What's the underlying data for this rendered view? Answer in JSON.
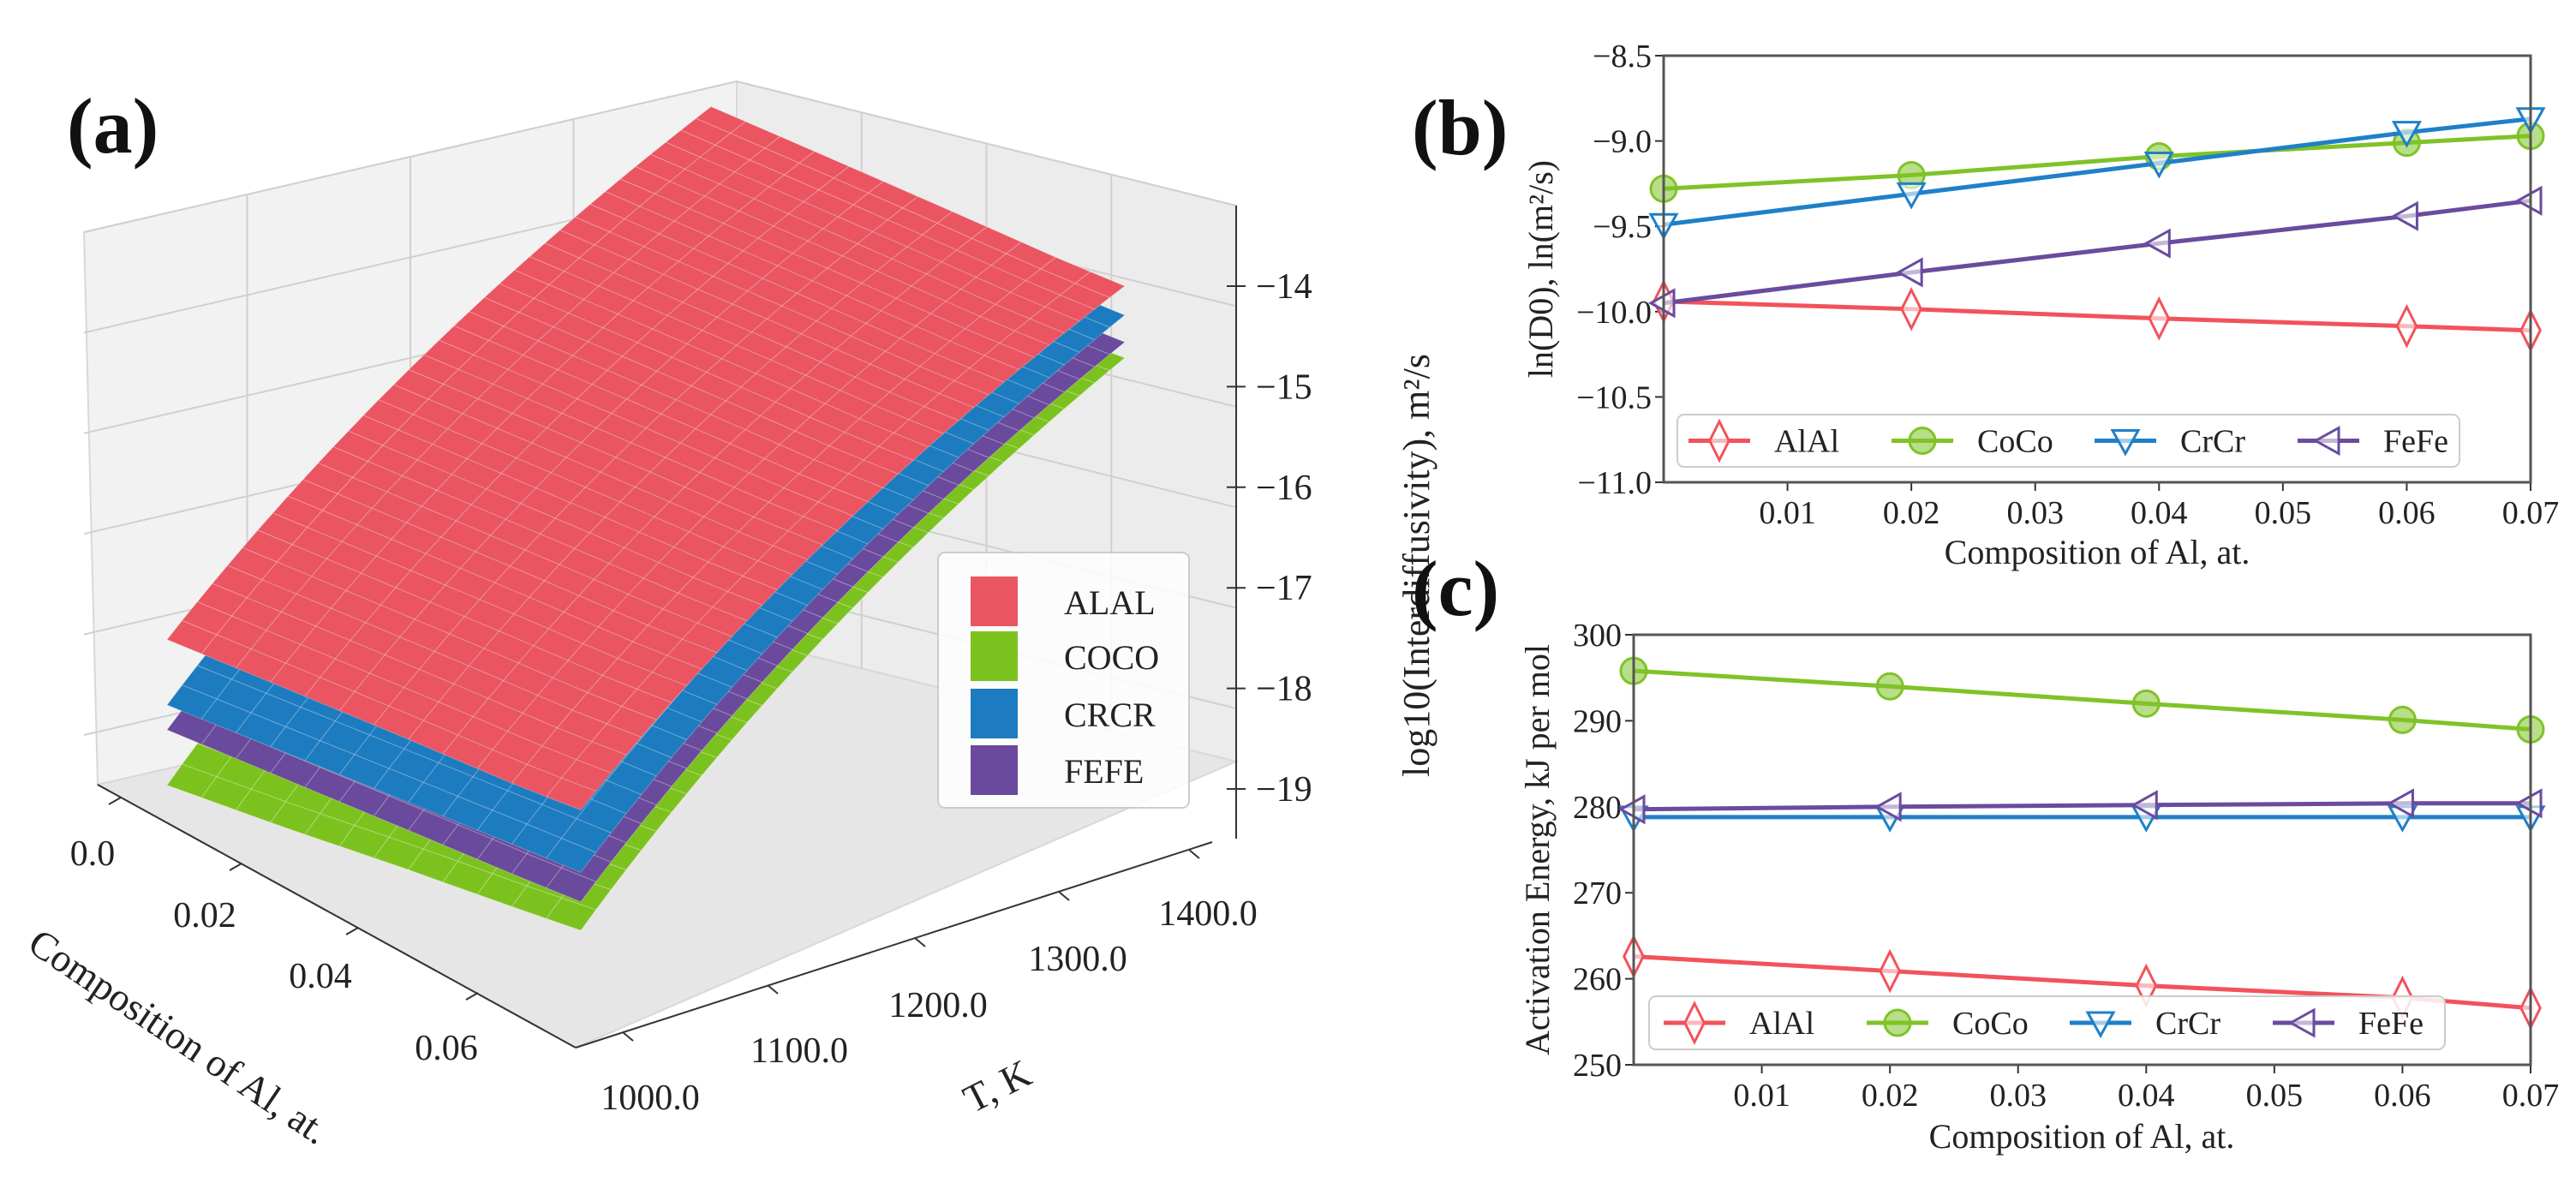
{
  "panel_labels": {
    "a": "(a)",
    "b": "(b)",
    "c": "(c)"
  },
  "colors": {
    "AlAl": "#f2525c",
    "CoCo": "#7fc328",
    "CrCr": "#1f80c8",
    "FeFe": "#6a4b9e",
    "surface_AlAl": "#ea5561",
    "surface_CoCo": "#7cc21e",
    "surface_CrCr": "#1d7cc0",
    "surface_FeFe": "#6a4a9c"
  },
  "chart_data": [
    {
      "type": "surface",
      "panel": "a",
      "xlabel": "Composition of Al, at.",
      "ylabel": "T, K",
      "zlabel": "log10(Interdiffusivity), m²/s",
      "xticks": [
        "0.0",
        "0.02",
        "0.04",
        "0.06"
      ],
      "yticks": [
        "1000.0",
        "1100.0",
        "1200.0",
        "1300.0",
        "1400.0"
      ],
      "zticks": [
        "−14",
        "−15",
        "−16",
        "−17",
        "−18",
        "−19"
      ],
      "xlim": [
        0,
        0.07
      ],
      "ylim": [
        1000,
        1400
      ],
      "zlim": [
        -19,
        -14
      ],
      "legend": [
        "ALAL",
        "COCO",
        "CRCR",
        "FEFE"
      ],
      "legend_position": "center-right"
    },
    {
      "type": "line",
      "panel": "b",
      "xlabel": "Composition of Al, at.",
      "ylabel": "ln(D0), ln(m²/s)",
      "x": [
        0.0,
        0.02,
        0.04,
        0.06,
        0.07
      ],
      "xlim": [
        0,
        0.07
      ],
      "ylim": [
        -11.0,
        -8.5
      ],
      "xticks": [
        "0.01",
        "0.02",
        "0.03",
        "0.04",
        "0.05",
        "0.06",
        "0.07"
      ],
      "yticks": [
        "−8.5",
        "−9.0",
        "−9.5",
        "−10.0",
        "−10.5",
        "−11.0"
      ],
      "legend_position": "bottom",
      "series": [
        {
          "name": "AlAl",
          "marker": "thin-diamond",
          "values": [
            -9.94,
            -9.985,
            -10.04,
            -10.085,
            -10.11
          ]
        },
        {
          "name": "CoCo",
          "marker": "circle",
          "values": [
            -9.28,
            -9.2,
            -9.09,
            -9.01,
            -8.97
          ]
        },
        {
          "name": "CrCr",
          "marker": "triangle-down",
          "values": [
            -9.49,
            -9.31,
            -9.13,
            -8.95,
            -8.87
          ]
        },
        {
          "name": "FeFe",
          "marker": "triangle-left",
          "values": [
            -9.95,
            -9.77,
            -9.6,
            -9.44,
            -9.35
          ]
        }
      ]
    },
    {
      "type": "line",
      "panel": "c",
      "xlabel": "Composition of Al, at.",
      "ylabel": "Activation Energy, kJ per mol",
      "x": [
        0.0,
        0.02,
        0.04,
        0.06,
        0.07
      ],
      "xlim": [
        0,
        0.07
      ],
      "ylim": [
        250,
        300
      ],
      "xticks": [
        "0.01",
        "0.02",
        "0.03",
        "0.04",
        "0.05",
        "0.06",
        "0.07"
      ],
      "yticks": [
        "300",
        "290",
        "280",
        "270",
        "260",
        "250"
      ],
      "legend_position": "bottom",
      "series": [
        {
          "name": "AlAl",
          "marker": "thin-diamond",
          "values": [
            262.6,
            260.9,
            259.2,
            257.8,
            256.6
          ]
        },
        {
          "name": "CoCo",
          "marker": "circle",
          "values": [
            295.8,
            294.0,
            292.0,
            290.1,
            289.0
          ]
        },
        {
          "name": "CrCr",
          "marker": "triangle-down",
          "values": [
            278.8,
            278.8,
            278.8,
            278.8,
            278.8
          ]
        },
        {
          "name": "FeFe",
          "marker": "triangle-left",
          "values": [
            279.7,
            280.0,
            280.2,
            280.4,
            280.4
          ]
        }
      ]
    }
  ]
}
